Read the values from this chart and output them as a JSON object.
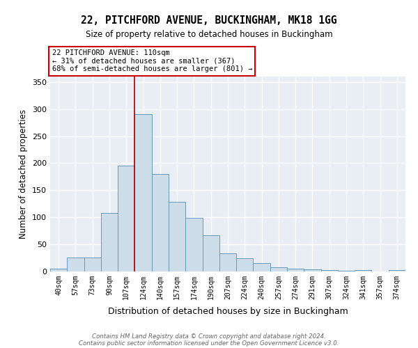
{
  "title1": "22, PITCHFORD AVENUE, BUCKINGHAM, MK18 1GG",
  "title2": "Size of property relative to detached houses in Buckingham",
  "xlabel": "Distribution of detached houses by size in Buckingham",
  "ylabel": "Number of detached properties",
  "categories": [
    "40sqm",
    "57sqm",
    "73sqm",
    "90sqm",
    "107sqm",
    "124sqm",
    "140sqm",
    "157sqm",
    "174sqm",
    "190sqm",
    "207sqm",
    "224sqm",
    "240sqm",
    "257sqm",
    "274sqm",
    "291sqm",
    "307sqm",
    "324sqm",
    "341sqm",
    "357sqm",
    "374sqm"
  ],
  "values": [
    5,
    26,
    26,
    108,
    196,
    290,
    180,
    128,
    99,
    67,
    33,
    25,
    16,
    8,
    5,
    4,
    3,
    1,
    2,
    0,
    2
  ],
  "bar_color": "#ccdce8",
  "bar_edge_color": "#6699bb",
  "vline_color": "#aa0000",
  "vline_index": 5,
  "annotation_text": "22 PITCHFORD AVENUE: 110sqm\n← 31% of detached houses are smaller (367)\n68% of semi-detached houses are larger (801) →",
  "annotation_box_facecolor": "#ffffff",
  "annotation_box_edgecolor": "#cc0000",
  "footer1": "Contains HM Land Registry data © Crown copyright and database right 2024.",
  "footer2": "Contains public sector information licensed under the Open Government Licence v3.0.",
  "ylim": [
    0,
    360
  ],
  "background_color": "#e8eef4"
}
